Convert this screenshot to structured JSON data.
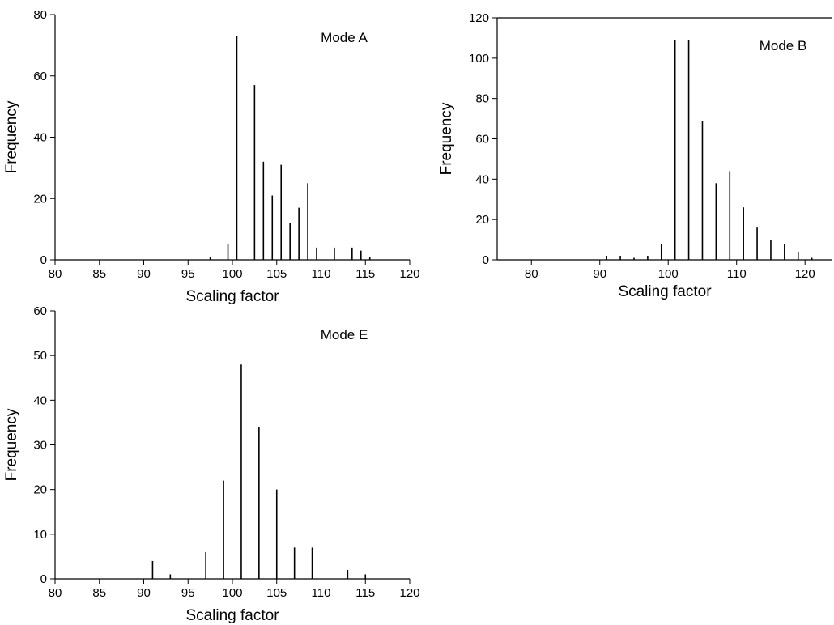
{
  "chart_data": [
    {
      "type": "bar",
      "title": "Mode A",
      "xlabel": "Scaling factor",
      "ylabel": "Frequency",
      "xlim": [
        80,
        120
      ],
      "ylim": [
        0,
        80
      ],
      "xticks": [
        80,
        85,
        90,
        95,
        100,
        105,
        110,
        115,
        120
      ],
      "yticks": [
        0,
        20,
        40,
        60,
        80
      ],
      "x": [
        97.5,
        99.5,
        100.5,
        102.5,
        103.5,
        104.5,
        105.5,
        106.5,
        107.5,
        108.5,
        109.5,
        111.5,
        113.5,
        114.5,
        115.5
      ],
      "values": [
        1,
        5,
        73,
        57,
        32,
        21,
        31,
        12,
        17,
        25,
        4,
        4,
        4,
        3,
        1
      ]
    },
    {
      "type": "bar",
      "title": "Mode B",
      "xlabel": "Scaling factor",
      "ylabel": "Frequency",
      "xlim": [
        75,
        124
      ],
      "ylim": [
        0,
        120
      ],
      "xticks": [
        80,
        90,
        100,
        110,
        120
      ],
      "yticks": [
        0,
        20,
        40,
        60,
        80,
        100,
        120
      ],
      "x": [
        91,
        93,
        95,
        97,
        99,
        101,
        103,
        105,
        107,
        109,
        111,
        113,
        115,
        117,
        119,
        121
      ],
      "values": [
        2,
        2,
        1,
        2,
        8,
        109,
        109,
        69,
        38,
        44,
        26,
        16,
        10,
        8,
        4,
        1
      ]
    },
    {
      "type": "bar",
      "title": "Mode E",
      "xlabel": "Scaling factor",
      "ylabel": "Frequency",
      "xlim": [
        80,
        120
      ],
      "ylim": [
        0,
        60
      ],
      "xticks": [
        80,
        85,
        90,
        95,
        100,
        105,
        110,
        115,
        120
      ],
      "yticks": [
        0,
        10,
        20,
        30,
        40,
        50,
        60
      ],
      "x": [
        91,
        93,
        97,
        99,
        101,
        103,
        105,
        107,
        109,
        113,
        115
      ],
      "values": [
        4,
        1,
        6,
        22,
        48,
        34,
        20,
        7,
        7,
        2,
        1
      ]
    }
  ]
}
